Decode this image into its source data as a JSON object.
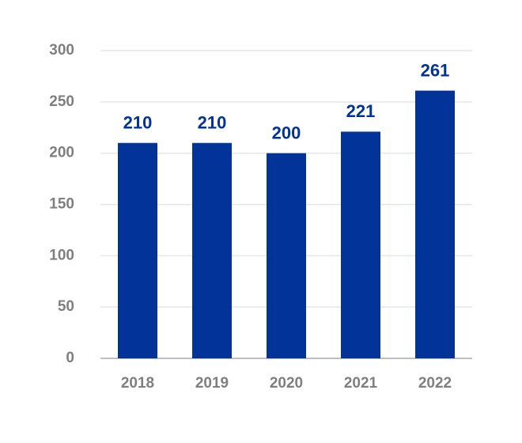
{
  "chart_data": {
    "type": "bar",
    "categories": [
      "2018",
      "2019",
      "2020",
      "2021",
      "2022"
    ],
    "values": [
      210,
      210,
      200,
      221,
      261
    ],
    "color": "#023399",
    "ylim": [
      0,
      300
    ],
    "yticks": [
      0,
      50,
      100,
      150,
      200,
      250,
      300
    ],
    "grid": true
  }
}
